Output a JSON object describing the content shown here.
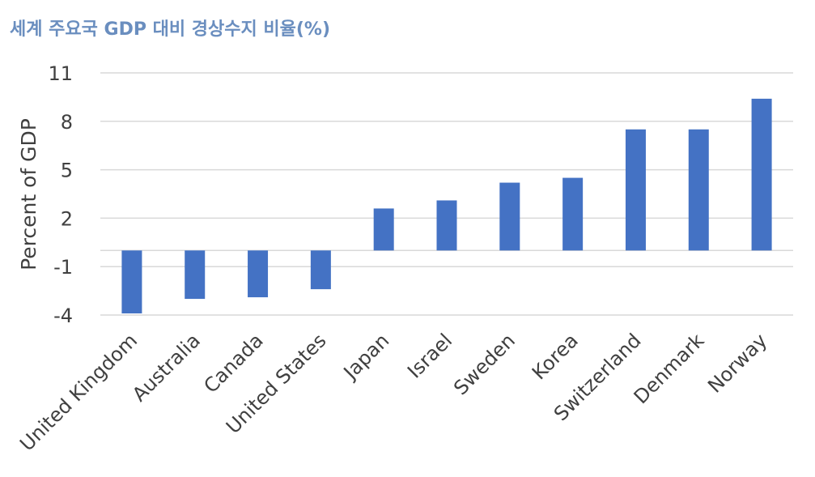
{
  "chart_data": {
    "type": "bar",
    "title": "세계 주요국 GDP 대비 경상수지 비율(%)",
    "xlabel": "",
    "ylabel": "Percent of GDP",
    "categories": [
      "United Kingdom",
      "Australia",
      "Canada",
      "United States",
      "Japan",
      "Israel",
      "Sweden",
      "Korea",
      "Switzerland",
      "Denmark",
      "Norway"
    ],
    "values": [
      -3.9,
      -3.0,
      -2.9,
      -2.4,
      2.6,
      3.1,
      4.2,
      4.5,
      7.5,
      7.5,
      9.4
    ],
    "yticks": [
      11,
      8,
      5,
      2,
      -1,
      -4
    ],
    "ylim": [
      -4,
      11
    ],
    "grid": true,
    "legend": "none",
    "bar_color": "#4472c4"
  }
}
